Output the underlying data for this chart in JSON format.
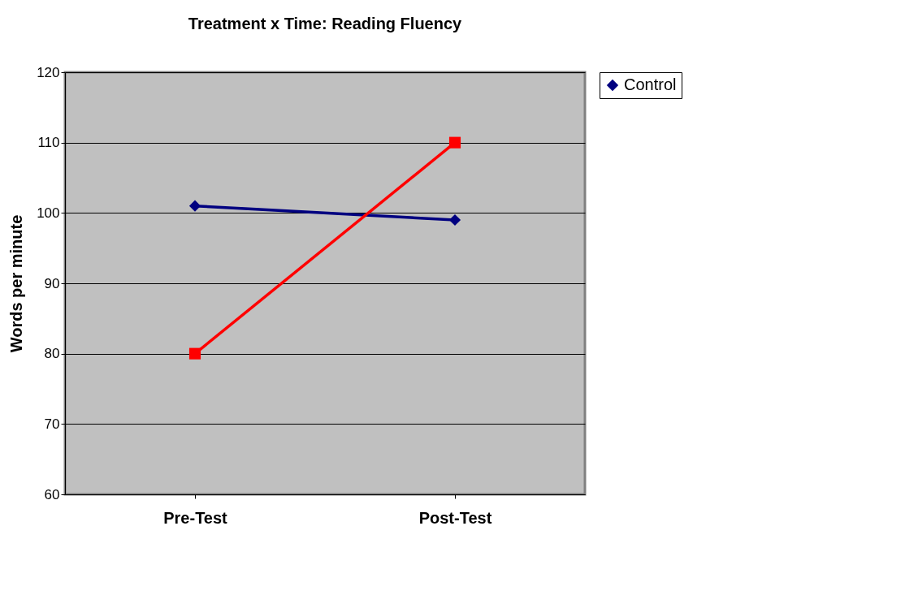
{
  "chart_data": {
    "type": "line",
    "title": "Treatment x Time: Reading Fluency",
    "ylabel": "Words per minute",
    "categories": [
      "Pre-Test",
      "Post-Test"
    ],
    "series": [
      {
        "name": "Control",
        "color": "#000080",
        "values": [
          101,
          99
        ],
        "marker": "diamond"
      },
      {
        "color": "#ff0000",
        "values": [
          80,
          110
        ],
        "marker": "square"
      }
    ],
    "ylim": [
      60,
      120
    ],
    "yticks": [
      60,
      70,
      80,
      90,
      100,
      110,
      120
    ],
    "grid": "y",
    "legend": "right",
    "line_style": "solid"
  }
}
